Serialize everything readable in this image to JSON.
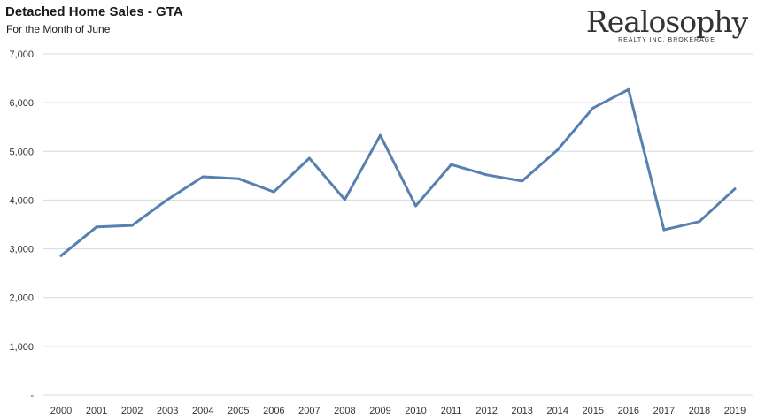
{
  "chart_data": {
    "type": "line",
    "title": "Detached Home Sales - GTA",
    "subtitle": "For the Month of June",
    "x": [
      "2000",
      "2001",
      "2002",
      "2003",
      "2004",
      "2005",
      "2006",
      "2007",
      "2008",
      "2009",
      "2010",
      "2011",
      "2012",
      "2013",
      "2014",
      "2015",
      "2016",
      "2017",
      "2018",
      "2019"
    ],
    "series": [
      {
        "values": [
          2860,
          3450,
          3480,
          4010,
          4480,
          4440,
          4170,
          4860,
          4010,
          5330,
          3880,
          4730,
          4520,
          4390,
          5030,
          5890,
          6270,
          3390,
          3560,
          4230
        ]
      }
    ],
    "ylim": [
      0,
      7000
    ],
    "yticks": [
      0,
      1000,
      2000,
      3000,
      4000,
      5000,
      6000,
      7000
    ],
    "ytick_labels": [
      "-",
      "1,000",
      "2,000",
      "3,000",
      "4,000",
      "5,000",
      "6,000",
      "7,000"
    ],
    "grid": true,
    "line_color": "#5580b0",
    "grid_color": "#d9d9d9"
  },
  "logo": {
    "name": "Realosophy",
    "tagline": "REALTY INC. BROKERAGE"
  }
}
